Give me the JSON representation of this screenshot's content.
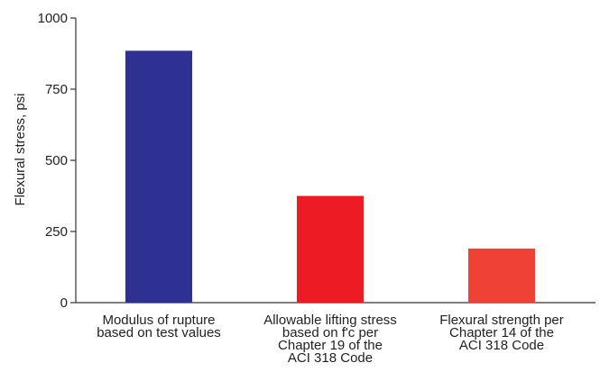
{
  "chart_data": {
    "type": "bar",
    "ylabel": "Flexural stress, psi",
    "xlabel": "",
    "ylim": [
      0,
      1000
    ],
    "yticks": [
      0,
      250,
      500,
      750,
      1000
    ],
    "grid": false,
    "legend": "none",
    "categories": [
      "Modulus of rupture based on test values",
      "Allowable lifting stress based on f'c per Chapter 19 of the ACI 318 Code",
      "Flexural strength per Chapter 14 of the ACI 318 Code"
    ],
    "category_lines": [
      [
        "Modulus of rupture",
        "based on test values"
      ],
      [
        "Allowable lifting stress",
        "based on f'c per",
        "Chapter 19 of the",
        "ACI 318 Code"
      ],
      [
        "Flexural strength per",
        "Chapter 14 of the",
        "ACI 318 Code"
      ]
    ],
    "values": [
      885,
      375,
      190
    ],
    "colors": [
      "#2e3192",
      "#ed1c24",
      "#ef4136"
    ]
  }
}
